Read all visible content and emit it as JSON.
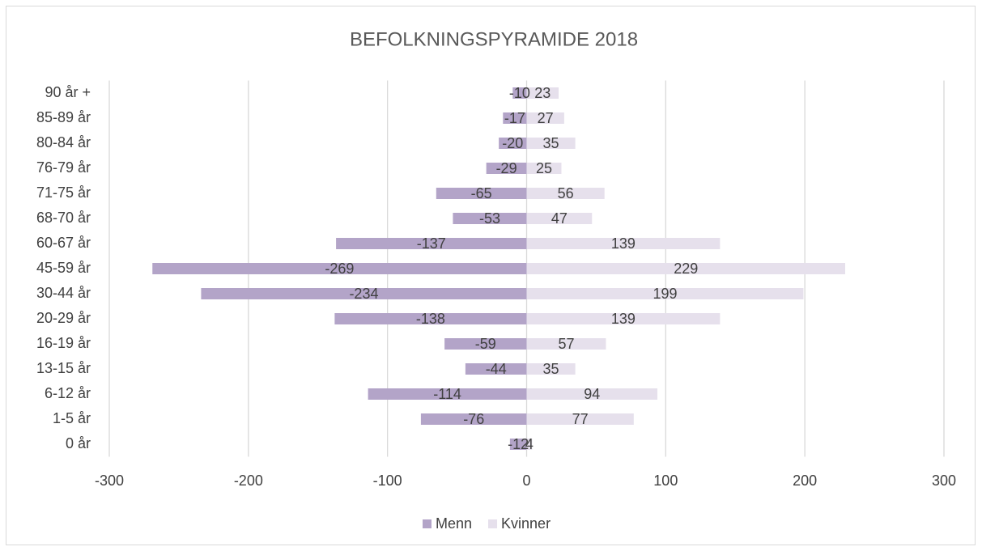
{
  "chart_data": {
    "type": "bar",
    "orientation": "horizontal",
    "title": "BEFOLKNINGSPYRAMIDE 2018",
    "categories": [
      "0 år",
      "1-5 år",
      "6-12 år",
      "13-15 år",
      "16-19 år",
      "20-29 år",
      "30-44 år",
      "45-59 år",
      "60-67 år",
      "68-70 år",
      "71-75 år",
      "76-79 år",
      "80-84 år",
      "85-89 år",
      "90 år +"
    ],
    "series": [
      {
        "name": "Menn",
        "color": "#b3a4c8",
        "values": [
          -12,
          -76,
          -114,
          -44,
          -59,
          -138,
          -234,
          -269,
          -137,
          -53,
          -65,
          -29,
          -20,
          -17,
          -10
        ]
      },
      {
        "name": "Kvinner",
        "color": "#e6e0ec",
        "values": [
          4,
          77,
          94,
          35,
          57,
          139,
          199,
          229,
          139,
          47,
          56,
          25,
          35,
          27,
          23
        ]
      }
    ],
    "xlim": [
      -300,
      300
    ],
    "xticks": [
      -300,
      -200,
      -100,
      0,
      100,
      200,
      300
    ],
    "grid": true,
    "legend": "bottom"
  }
}
